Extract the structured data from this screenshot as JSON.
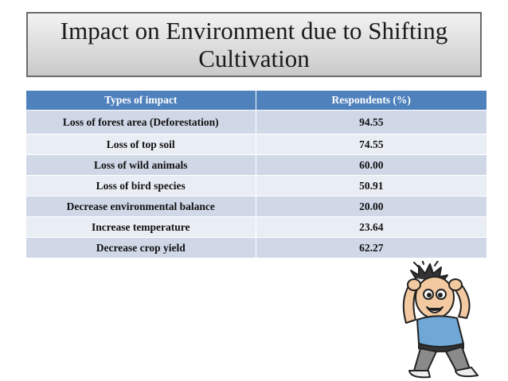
{
  "slide": {
    "title_line1": "Impact on Environment due to Shifting",
    "title_line2": "Cultivation"
  },
  "table": {
    "headers": [
      "Types of impact",
      "Respondents (%)"
    ],
    "rows": [
      {
        "impact": "Loss of forest area (Deforestation)",
        "respondents": "94.55"
      },
      {
        "impact": "Loss of top soil",
        "respondents": "74.55"
      },
      {
        "impact": "Loss of wild animals",
        "respondents": "60.00"
      },
      {
        "impact": "Loss of bird species",
        "respondents": "50.91"
      },
      {
        "impact": "Decrease environmental balance",
        "respondents": "20.00"
      },
      {
        "impact": "Increase temperature",
        "respondents": "23.64"
      },
      {
        "impact": "Decrease crop yield",
        "respondents": "62.27"
      }
    ]
  },
  "colors": {
    "header_bg": "#4f81bd",
    "row_odd_bg": "#d0d8e8",
    "row_even_bg": "#e9edf4"
  },
  "illustration": "stressed-man-cartoon"
}
